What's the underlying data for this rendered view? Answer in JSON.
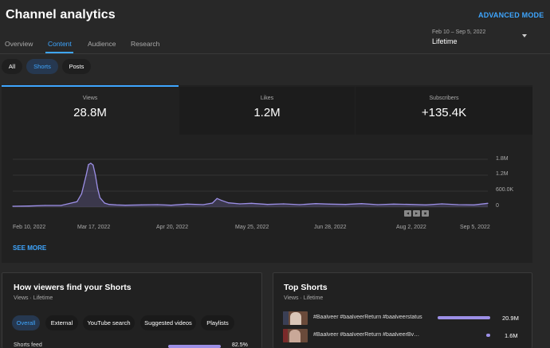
{
  "header": {
    "title": "Channel analytics",
    "advanced_mode": "ADVANCED MODE",
    "tabs": [
      {
        "label": "Overview",
        "active": false
      },
      {
        "label": "Content",
        "active": true
      },
      {
        "label": "Audience",
        "active": false
      },
      {
        "label": "Research",
        "active": false
      }
    ],
    "date_range": "Feb 10 – Sep 5, 2022",
    "date_period": "Lifetime"
  },
  "filters": [
    {
      "label": "All",
      "active": false
    },
    {
      "label": "Shorts",
      "active": true
    },
    {
      "label": "Posts",
      "active": false
    }
  ],
  "metrics": [
    {
      "label": "Views",
      "value": "28.8M",
      "selected": true
    },
    {
      "label": "Likes",
      "value": "1.2M",
      "selected": false
    },
    {
      "label": "Subscribers",
      "value": "+135.4K",
      "selected": false
    }
  ],
  "chart_data": {
    "type": "area",
    "y_tick_labels": [
      "1.8M",
      "1.2M",
      "600.0K",
      "0"
    ],
    "y_ticks": [
      1800000,
      1200000,
      600000,
      0
    ],
    "ylim": [
      0,
      1800000
    ],
    "x_tick_labels": [
      "Feb 10, 2022",
      "Mar 17, 2022",
      "Apr 20, 2022",
      "May 25, 2022",
      "Jun 28, 2022",
      "Aug 2, 2022",
      "Sep 5, 2022"
    ],
    "x": [
      "2022-02-10",
      "2022-02-17",
      "2022-02-24",
      "2022-03-03",
      "2022-03-10",
      "2022-03-12",
      "2022-03-14",
      "2022-03-15",
      "2022-03-16",
      "2022-03-17",
      "2022-03-18",
      "2022-03-19",
      "2022-03-20",
      "2022-03-22",
      "2022-03-24",
      "2022-03-27",
      "2022-03-31",
      "2022-04-07",
      "2022-04-14",
      "2022-04-20",
      "2022-04-27",
      "2022-05-04",
      "2022-05-08",
      "2022-05-10",
      "2022-05-12",
      "2022-05-15",
      "2022-05-20",
      "2022-05-25",
      "2022-06-01",
      "2022-06-08",
      "2022-06-15",
      "2022-06-22",
      "2022-06-28",
      "2022-07-05",
      "2022-07-12",
      "2022-07-19",
      "2022-07-26",
      "2022-08-02",
      "2022-08-09",
      "2022-08-16",
      "2022-08-23",
      "2022-08-30",
      "2022-09-05"
    ],
    "values": [
      30000,
      40000,
      60000,
      60000,
      200000,
      500000,
      1200000,
      1600000,
      1650000,
      1580000,
      1200000,
      700000,
      350000,
      150000,
      100000,
      80000,
      70000,
      80000,
      90000,
      70000,
      110000,
      90000,
      150000,
      320000,
      250000,
      160000,
      120000,
      140000,
      100000,
      120000,
      90000,
      130000,
      110000,
      100000,
      130000,
      90000,
      110000,
      100000,
      80000,
      120000,
      90000,
      80000,
      140000
    ],
    "series": [
      {
        "name": "Views"
      }
    ],
    "grid": true
  },
  "chart_controls": [
    "◀",
    "▶",
    "▣"
  ],
  "see_more": "SEE MORE",
  "traffic_panel": {
    "title": "How viewers find your Shorts",
    "subtitle": "Views · Lifetime",
    "chips": [
      {
        "label": "Overall",
        "active": true
      },
      {
        "label": "External",
        "active": false
      },
      {
        "label": "YouTube search",
        "active": false
      },
      {
        "label": "Suggested videos",
        "active": false
      },
      {
        "label": "Playlists",
        "active": false
      }
    ],
    "rows": [
      {
        "label": "Shorts feed",
        "value": "82.5%",
        "fraction": 0.825
      }
    ]
  },
  "top_shorts_panel": {
    "title": "Top Shorts",
    "subtitle": "Views · Lifetime",
    "items": [
      {
        "title": "#Baalveer #baalveerReturn #baalveerstatus",
        "value": "20.9M",
        "fraction": 1.0
      },
      {
        "title": "#Baalveer #baalveerReturn #baalveerBvReturn",
        "value": "1.6M",
        "fraction": 0.08
      }
    ]
  }
}
